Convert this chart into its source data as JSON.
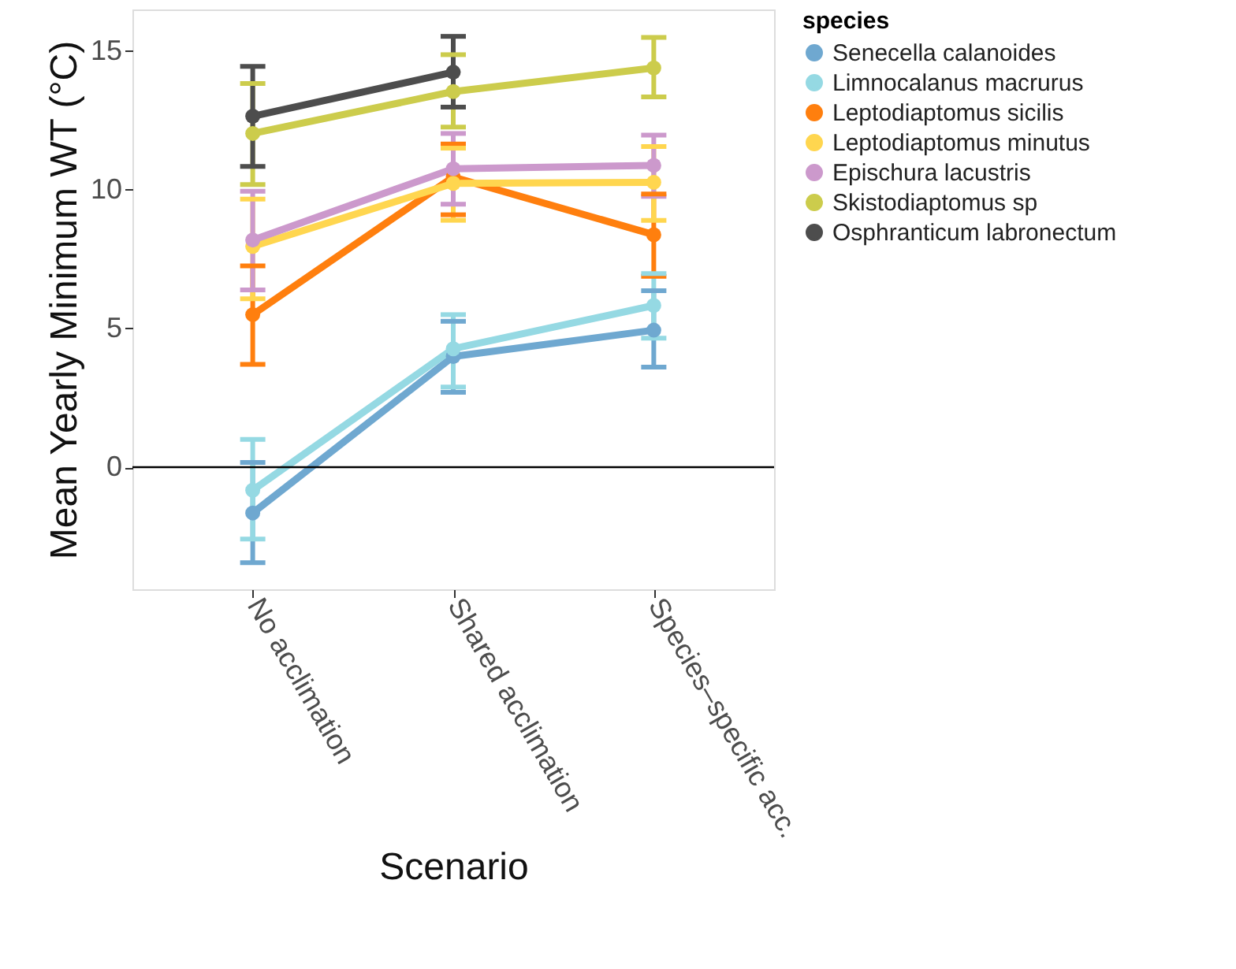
{
  "chart_data": {
    "type": "line",
    "xlabel": "Scenario",
    "ylabel": "Mean Yearly Minimum WT (°C)",
    "legend_title": "species",
    "categories": [
      "No acclimation",
      "Shared acclimation",
      "Species–specific acc."
    ],
    "series": [
      {
        "name": "Senecella calanoides",
        "color": "#6fa8d0",
        "values": [
          -1.65,
          3.99,
          4.94
        ],
        "errors": [
          [
            -3.44,
            0.17
          ],
          [
            2.7,
            5.26
          ],
          [
            3.61,
            6.36
          ]
        ]
      },
      {
        "name": "Limnocalanus macrurus",
        "color": "#95d9e3",
        "values": [
          -0.83,
          4.27,
          5.83
        ],
        "errors": [
          [
            -2.59,
            1.0
          ],
          [
            2.89,
            5.5
          ],
          [
            4.65,
            6.98
          ]
        ]
      },
      {
        "name": "Leptodiaptomus sicilis",
        "color": "#ff7f0e",
        "values": [
          5.5,
          10.46,
          8.38
        ],
        "errors": [
          [
            3.71,
            7.26
          ],
          [
            9.1,
            11.65
          ],
          [
            6.88,
            9.85
          ]
        ]
      },
      {
        "name": "Leptodiaptomus minutus",
        "color": "#ffd64f",
        "values": [
          7.96,
          10.23,
          10.27
        ],
        "errors": [
          [
            6.07,
            9.66
          ],
          [
            8.9,
            11.5
          ],
          [
            8.9,
            11.56
          ]
        ]
      },
      {
        "name": "Epischura lacustris",
        "color": "#cc99cc",
        "values": [
          8.19,
          10.76,
          10.88
        ],
        "errors": [
          [
            6.39,
            9.95
          ],
          [
            9.48,
            12.03
          ],
          [
            9.76,
            11.97
          ]
        ]
      },
      {
        "name": "Skistodiaptomus sp",
        "color": "#cccc4c",
        "values": [
          12.03,
          13.54,
          14.39
        ],
        "errors": [
          [
            10.19,
            13.83
          ],
          [
            12.26,
            14.87
          ],
          [
            13.35,
            15.49
          ]
        ]
      },
      {
        "name": "Osphranticum labronectum",
        "color": "#4d4d4d",
        "values": [
          12.65,
          14.24,
          null
        ],
        "errors": [
          [
            10.84,
            14.45
          ],
          [
            12.98,
            15.53
          ],
          null
        ]
      }
    ],
    "ylim": [
      -4.4,
      16.5
    ],
    "yticks": [
      0,
      5,
      10,
      15
    ],
    "ref_lines": [
      {
        "axis": "y",
        "value": 0,
        "color": "#000000"
      }
    ],
    "grid": false,
    "legend": "right",
    "marker": "circle",
    "line_style": "solid"
  }
}
